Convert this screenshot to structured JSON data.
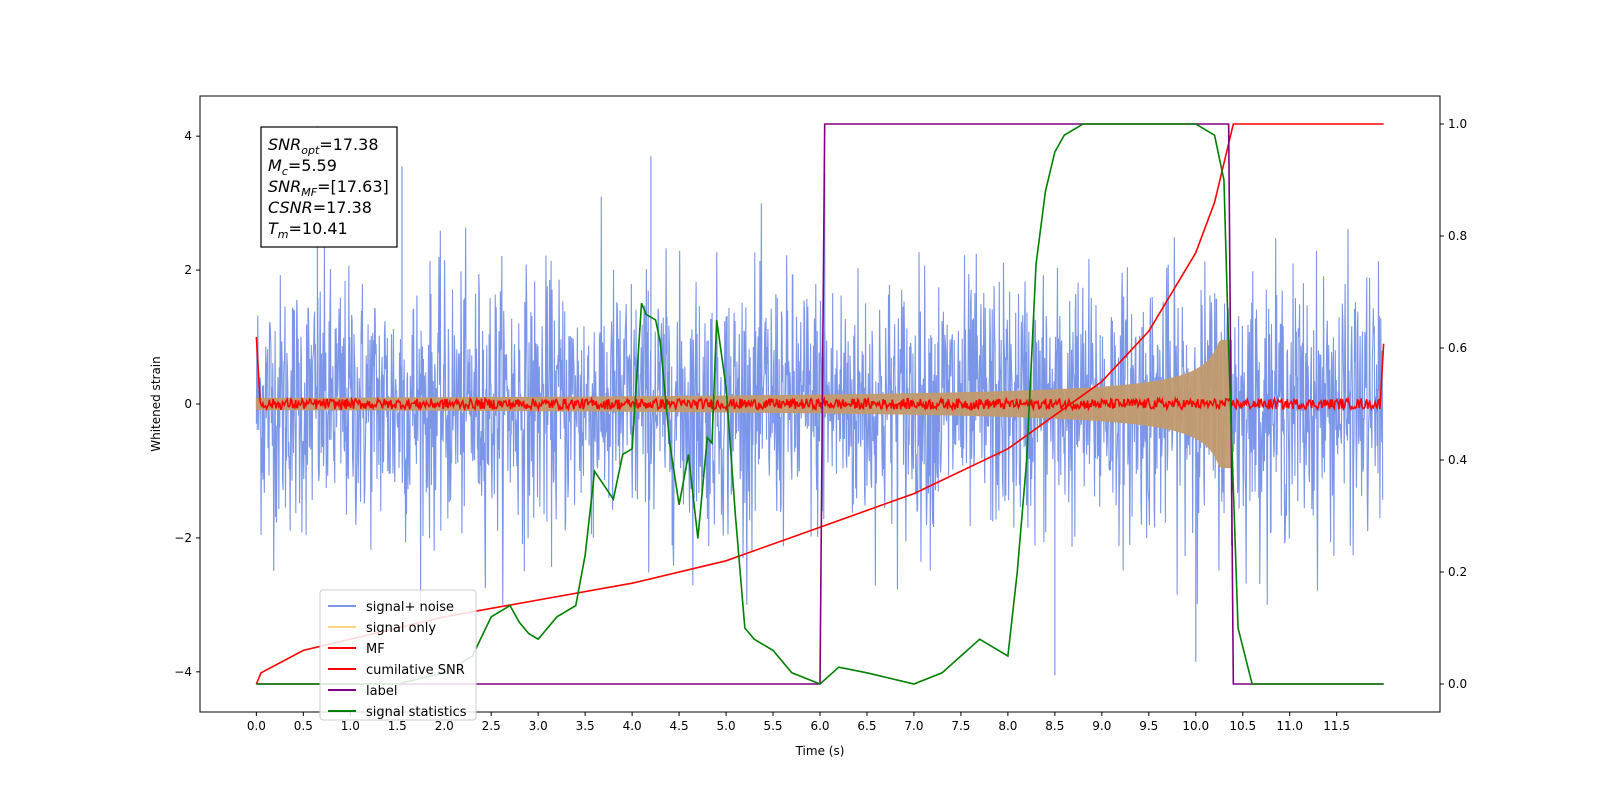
{
  "chart_data": {
    "type": "line",
    "xlabel": "Time (s)",
    "ylabel": "Whitened strain",
    "xlim": [
      -0.6,
      12.6
    ],
    "ylim": [
      -4.6,
      4.6
    ],
    "y2lim": [
      -0.05,
      1.05
    ],
    "x_ticks": [
      "0.0",
      "0.5",
      "1.0",
      "1.5",
      "2.0",
      "2.5",
      "3.0",
      "3.5",
      "4.0",
      "4.5",
      "5.0",
      "5.5",
      "6.0",
      "6.5",
      "7.0",
      "7.5",
      "8.0",
      "8.5",
      "9.0",
      "9.5",
      "10.0",
      "10.5",
      "11.0",
      "11.5"
    ],
    "y_ticks": [
      "−4",
      "−2",
      "0",
      "2",
      "4"
    ],
    "y2_ticks": [
      "0.0",
      "0.2",
      "0.4",
      "0.6",
      "0.8",
      "1.0"
    ],
    "info_box": [
      {
        "base": "SNR",
        "sub": "opt",
        "value": "=17.38"
      },
      {
        "base": "M",
        "sub": "c",
        "value": "=5.59"
      },
      {
        "base": "SNR",
        "sub": "MF",
        "value": "=[17.63]"
      },
      {
        "base": "CSNR",
        "sub": "",
        "value": "=17.38"
      },
      {
        "base": "T",
        "sub": "m",
        "value": "=10.41"
      }
    ],
    "legend": {
      "placement": "lower-left",
      "entries": [
        {
          "label": "signal+ noise",
          "color": "#7b96e8"
        },
        {
          "label": "signal only",
          "color": "#ffd27f"
        },
        {
          "label": "MF",
          "color": "#ff0000"
        },
        {
          "label": "cumilative SNR",
          "color": "#ff0000"
        },
        {
          "label": "label",
          "color": "#800080"
        },
        {
          "label": "signal statistics",
          "color": "#008000"
        }
      ]
    },
    "series": [
      {
        "name": "signal+ noise",
        "axis": "left",
        "color": "#7b96e8",
        "description_range": [
          -3.1,
          4.2
        ],
        "x_range": [
          0.0,
          11.99
        ],
        "typical_amplitude": 2.2,
        "outliers": [
          [
            0.65,
            4.15
          ],
          [
            6.05,
            3.45
          ],
          [
            8.5,
            -4.05
          ],
          [
            10.0,
            -3.85
          ],
          [
            1.55,
            3.55
          ],
          [
            4.2,
            3.7
          ]
        ]
      },
      {
        "name": "signal only",
        "axis": "left",
        "color": "#c29a6e",
        "chirp_end": 10.38,
        "max_amplitude": 0.95,
        "min_amplitude": 0.05
      },
      {
        "name": "MF",
        "axis": "left",
        "color": "#ff0000",
        "noise_amplitude": 0.08,
        "edge_values": [
          1.0,
          0.9
        ]
      },
      {
        "name": "cumilative SNR",
        "axis": "right",
        "color": "#ff0000",
        "x": [
          0.0,
          0.05,
          0.5,
          1.0,
          2.0,
          3.0,
          4.0,
          5.0,
          6.0,
          7.0,
          8.0,
          8.5,
          9.0,
          9.5,
          10.0,
          10.2,
          10.4,
          12.0
        ],
        "y": [
          0.0,
          0.02,
          0.06,
          0.08,
          0.12,
          0.15,
          0.18,
          0.22,
          0.28,
          0.34,
          0.42,
          0.48,
          0.54,
          0.63,
          0.77,
          0.86,
          1.0,
          1.0
        ]
      },
      {
        "name": "label",
        "axis": "right",
        "color": "#800080",
        "x": [
          0.0,
          6.0,
          6.05,
          10.35,
          10.4,
          12.0
        ],
        "y": [
          0.0,
          0.0,
          1.0,
          1.0,
          0.0,
          0.0
        ]
      },
      {
        "name": "signal statistics",
        "axis": "right",
        "color": "#008000",
        "x": [
          0.0,
          1.5,
          2.0,
          2.3,
          2.5,
          2.7,
          2.8,
          2.9,
          3.0,
          3.2,
          3.4,
          3.5,
          3.6,
          3.8,
          3.9,
          4.0,
          4.1,
          4.15,
          4.25,
          4.3,
          4.4,
          4.5,
          4.6,
          4.7,
          4.8,
          4.85,
          4.9,
          5.0,
          5.1,
          5.2,
          5.3,
          5.5,
          5.7,
          6.0,
          6.2,
          6.5,
          7.0,
          7.3,
          7.5,
          7.7,
          7.9,
          8.0,
          8.1,
          8.2,
          8.3,
          8.4,
          8.5,
          8.6,
          8.8,
          9.0,
          9.5,
          10.0,
          10.2,
          10.3,
          10.35,
          10.45,
          10.6,
          12.0
        ],
        "y": [
          0.0,
          0.0,
          0.02,
          0.05,
          0.12,
          0.14,
          0.11,
          0.09,
          0.08,
          0.12,
          0.14,
          0.23,
          0.38,
          0.33,
          0.41,
          0.42,
          0.68,
          0.66,
          0.65,
          0.61,
          0.43,
          0.32,
          0.41,
          0.26,
          0.44,
          0.43,
          0.65,
          0.53,
          0.3,
          0.1,
          0.08,
          0.06,
          0.02,
          0.0,
          0.03,
          0.02,
          0.0,
          0.02,
          0.05,
          0.08,
          0.06,
          0.05,
          0.2,
          0.4,
          0.75,
          0.88,
          0.95,
          0.98,
          1.0,
          1.0,
          1.0,
          1.0,
          0.98,
          0.9,
          0.6,
          0.1,
          0.0,
          0.0
        ]
      }
    ]
  }
}
